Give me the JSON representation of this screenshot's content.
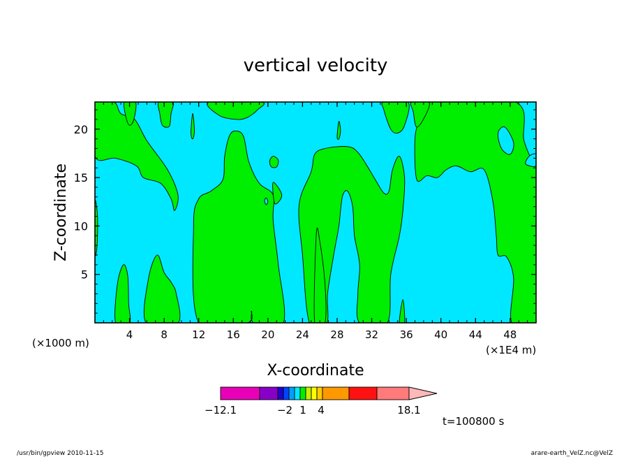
{
  "chart_data": {
    "type": "contour",
    "title": "vertical velocity",
    "xlabel": "X-coordinate",
    "ylabel": "Z-coordinate",
    "x_unit_left": "(×1000 m)",
    "x_unit_right": "(×1E4 m)",
    "xlim": [
      0,
      51
    ],
    "ylim": [
      0,
      22.8
    ],
    "x_ticks": [
      "4",
      "8",
      "12",
      "16",
      "20",
      "24",
      "28",
      "32",
      "36",
      "40",
      "44",
      "48"
    ],
    "x_tick_values": [
      4,
      8,
      12,
      16,
      20,
      24,
      28,
      32,
      36,
      40,
      44,
      48
    ],
    "y_ticks": [
      "5",
      "10",
      "15",
      "20"
    ],
    "y_tick_values": [
      5,
      10,
      15,
      20
    ],
    "background_color": "#00e8ff",
    "fill_color": "#00ee00",
    "regions_positive": [
      {
        "name": "upper-left lobe",
        "points": [
          [
            0,
            22.8
          ],
          [
            0,
            17.2
          ],
          [
            2.4,
            17.0
          ],
          [
            4.8,
            16.2
          ],
          [
            5.6,
            15.0
          ],
          [
            7.6,
            14.4
          ],
          [
            8.8,
            12.8
          ],
          [
            9.2,
            11.6
          ],
          [
            9.6,
            13.2
          ],
          [
            8.4,
            15.8
          ],
          [
            6.0,
            18.8
          ],
          [
            4.6,
            21.0
          ],
          [
            3.0,
            21.6
          ],
          [
            2.2,
            22.8
          ]
        ]
      },
      {
        "name": "left edge strip",
        "points": [
          [
            0,
            12.5
          ],
          [
            0.3,
            11.0
          ],
          [
            0.25,
            8.0
          ],
          [
            0,
            7.2
          ]
        ]
      },
      {
        "name": "left bottom plume",
        "points": [
          [
            2.4,
            0
          ],
          [
            2.6,
            4.0
          ],
          [
            3.3,
            6.0
          ],
          [
            3.8,
            4.8
          ],
          [
            3.9,
            2.0
          ],
          [
            4.0,
            0
          ]
        ]
      },
      {
        "name": "second bottom plume",
        "points": [
          [
            5.9,
            0
          ],
          [
            6.2,
            4.6
          ],
          [
            7.2,
            7.0
          ],
          [
            8.0,
            5.2
          ],
          [
            8.8,
            4.2
          ],
          [
            9.4,
            3.0
          ],
          [
            9.6,
            0
          ]
        ]
      },
      {
        "name": "top notch 1",
        "points": [
          [
            3.4,
            22.8
          ],
          [
            3.6,
            21.2
          ],
          [
            4.0,
            20.4
          ],
          [
            4.5,
            21.0
          ],
          [
            4.7,
            22.8
          ]
        ]
      },
      {
        "name": "top notch 2",
        "points": [
          [
            7.4,
            22.8
          ],
          [
            7.5,
            21.6
          ],
          [
            7.8,
            20.4
          ],
          [
            8.6,
            20.3
          ],
          [
            8.8,
            21.6
          ],
          [
            9.0,
            22.8
          ]
        ]
      },
      {
        "name": "thin finger",
        "points": [
          [
            11.1,
            19.6
          ],
          [
            11.3,
            21.6
          ],
          [
            11.5,
            19.8
          ],
          [
            11.3,
            19.0
          ]
        ]
      },
      {
        "name": "center dome",
        "points": [
          [
            12.0,
            0
          ],
          [
            11.4,
            10.0
          ],
          [
            12.0,
            12.8
          ],
          [
            13.4,
            13.6
          ],
          [
            14.8,
            14.8
          ],
          [
            15.0,
            17.2
          ],
          [
            15.6,
            19.4
          ],
          [
            16.4,
            19.8
          ],
          [
            17.2,
            19.2
          ],
          [
            17.8,
            16.6
          ],
          [
            19.0,
            14.4
          ],
          [
            20.6,
            13.2
          ],
          [
            20.6,
            10.6
          ],
          [
            21.2,
            6.0
          ],
          [
            21.8,
            0
          ],
          [
            18.4,
            0
          ],
          [
            18.1,
            1.2
          ],
          [
            17.6,
            0
          ]
        ]
      },
      {
        "name": "small blob",
        "points": [
          [
            20.2,
            16.7
          ],
          [
            20.6,
            17.2
          ],
          [
            21.2,
            16.8
          ],
          [
            21.0,
            16.1
          ],
          [
            20.4,
            16.1
          ]
        ]
      },
      {
        "name": "bulge",
        "points": [
          [
            20.6,
            14.5
          ],
          [
            21.6,
            13.2
          ],
          [
            20.8,
            12.3
          ]
        ]
      },
      {
        "name": "center top",
        "points": [
          [
            13.2,
            22.8
          ],
          [
            14.4,
            21.4
          ],
          [
            16.4,
            21.0
          ],
          [
            17.6,
            21.2
          ],
          [
            18.8,
            22.0
          ],
          [
            19.2,
            22.8
          ]
        ]
      },
      {
        "name": "right-center column",
        "points": [
          [
            24.8,
            0
          ],
          [
            24.0,
            7.0
          ],
          [
            23.6,
            12.2
          ],
          [
            25.0,
            15.6
          ],
          [
            25.4,
            17.4
          ],
          [
            26.6,
            18.0
          ],
          [
            29.2,
            18.2
          ],
          [
            30.4,
            17.6
          ],
          [
            31.6,
            16.0
          ],
          [
            32.4,
            14.8
          ],
          [
            33.4,
            13.4
          ],
          [
            34.0,
            13.6
          ],
          [
            34.4,
            15.8
          ],
          [
            35.2,
            17.2
          ],
          [
            35.8,
            15.0
          ],
          [
            35.6,
            11.6
          ],
          [
            35.2,
            9.0
          ],
          [
            34.2,
            5.0
          ],
          [
            33.8,
            0
          ],
          [
            30.6,
            0
          ],
          [
            30.4,
            3.0
          ],
          [
            30.6,
            6.0
          ],
          [
            30.0,
            9.0
          ],
          [
            29.8,
            12.0
          ],
          [
            29.2,
            13.6
          ],
          [
            28.6,
            13.0
          ],
          [
            28.2,
            10.0
          ],
          [
            27.6,
            7.0
          ],
          [
            26.9,
            3.0
          ],
          [
            26.8,
            0
          ]
        ]
      },
      {
        "name": "left part of column",
        "points": [
          [
            25.4,
            0
          ],
          [
            25.6,
            9.2
          ],
          [
            26.0,
            8.4
          ],
          [
            26.6,
            4.0
          ],
          [
            26.6,
            0
          ]
        ]
      },
      {
        "name": "small finger",
        "points": [
          [
            28.0,
            19.2
          ],
          [
            28.2,
            20.8
          ],
          [
            28.4,
            19.8
          ],
          [
            28.2,
            19.0
          ]
        ]
      },
      {
        "name": "right wedge",
        "points": [
          [
            33.4,
            22.8
          ],
          [
            33.4,
            22.0
          ],
          [
            34.2,
            20.0
          ],
          [
            35.0,
            19.6
          ],
          [
            35.8,
            20.4
          ],
          [
            36.2,
            22.8
          ]
        ]
      },
      {
        "name": "lower sliver",
        "points": [
          [
            35.2,
            0
          ],
          [
            35.6,
            2.4
          ],
          [
            35.8,
            0
          ]
        ]
      },
      {
        "name": "right mass",
        "points": [
          [
            38.8,
            22.8
          ],
          [
            37.6,
            21.0
          ],
          [
            37.0,
            19.0
          ],
          [
            37.2,
            14.8
          ],
          [
            38.4,
            15.2
          ],
          [
            39.6,
            15.0
          ],
          [
            40.6,
            15.8
          ],
          [
            41.8,
            16.2
          ],
          [
            43.4,
            15.6
          ],
          [
            45.0,
            15.8
          ],
          [
            46.0,
            12.6
          ],
          [
            46.4,
            9.0
          ],
          [
            46.6,
            7.0
          ],
          [
            47.6,
            6.8
          ],
          [
            48.4,
            4.6
          ],
          [
            48.2,
            0
          ],
          [
            51,
            0
          ],
          [
            51,
            16.0
          ],
          [
            50.6,
            16.6
          ],
          [
            49.6,
            18.8
          ],
          [
            48.6,
            22.8
          ]
        ]
      },
      {
        "name": "right top wedge",
        "points": [
          [
            36.6,
            22.8
          ],
          [
            36.8,
            21.8
          ],
          [
            37.2,
            20.2
          ],
          [
            38.2,
            21.4
          ],
          [
            38.6,
            22.8
          ]
        ]
      }
    ],
    "regions_negative_holes": [
      {
        "name": "hole top right",
        "points": [
          [
            46.6,
            19.6
          ],
          [
            47.0,
            18.0
          ],
          [
            48.0,
            17.4
          ],
          [
            48.4,
            18.6
          ],
          [
            47.4,
            20.2
          ]
        ]
      },
      {
        "name": "hole right edge",
        "points": [
          [
            49.8,
            16.4
          ],
          [
            51,
            16.2
          ],
          [
            51,
            17.4
          ],
          [
            50.2,
            17.2
          ]
        ]
      },
      {
        "name": "hole small",
        "points": [
          [
            19.6,
            12.6
          ],
          [
            19.8,
            12.2
          ],
          [
            20.0,
            12.5
          ],
          [
            19.8,
            12.9
          ]
        ]
      }
    ],
    "colorbar": {
      "segments": [
        {
          "color": "#e800b8",
          "width": 56
        },
        {
          "color": "#8800c8",
          "width": 26
        },
        {
          "color": "#2200cc",
          "width": 8
        },
        {
          "color": "#0044ff",
          "width": 8
        },
        {
          "color": "#00a0ff",
          "width": 8
        },
        {
          "color": "#00e8ff",
          "width": 8
        },
        {
          "color": "#00ee00",
          "width": 8
        },
        {
          "color": "#c8ee00",
          "width": 8
        },
        {
          "color": "#ffff00",
          "width": 8
        },
        {
          "color": "#ffcc00",
          "width": 8
        },
        {
          "color": "#ff9900",
          "width": 38
        },
        {
          "color": "#ff6600",
          "width": 0
        },
        {
          "color": "#ff1111",
          "width": 40
        },
        {
          "color": "#ff7a7a",
          "width": 46
        }
      ],
      "tip_color": "#ffb8b8",
      "labels": [
        {
          "text": "−12.1",
          "offset": 0
        },
        {
          "text": "−2",
          "offset": 92
        },
        {
          "text": "1",
          "offset": 118
        },
        {
          "text": "4",
          "offset": 144
        },
        {
          "text": "18.1",
          "offset": 270
        }
      ]
    },
    "time_label": "t=100800 s",
    "footer_left": "/usr/bin/gpview  2010-11-15",
    "footer_right": "arare-earth_VelZ.nc@VelZ"
  }
}
